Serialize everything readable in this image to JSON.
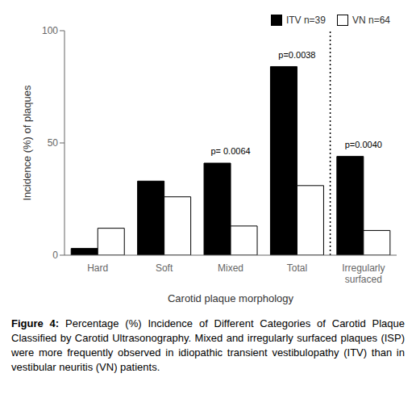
{
  "chart_data": {
    "type": "bar",
    "xlabel": "Carotid plaque morphology",
    "ylabel": "Incidence (%) of plaques",
    "categories": [
      "Hard",
      "Soft",
      "Mixed",
      "Total",
      "Irregularly\nsurfaced"
    ],
    "series": [
      {
        "name": "ITV n=39",
        "color": "#000000",
        "values": [
          3,
          33,
          41,
          84,
          44
        ]
      },
      {
        "name": "VN n=64",
        "color": "#ffffff",
        "values": [
          12,
          26,
          13,
          31,
          11
        ]
      }
    ],
    "ylim": [
      0,
      100
    ],
    "yticks": [
      0,
      50,
      100
    ],
    "legend": "top right",
    "grid": false,
    "annotations": [
      {
        "text": "p= 0.0064",
        "x": "Mixed",
        "y": 43
      },
      {
        "text": "p=0.0038",
        "x": "Total",
        "y": 86
      },
      {
        "text": "p=0.0040",
        "x": "Irregularly\nsurfaced",
        "y": 46
      }
    ],
    "caption_label": "Figure 4:",
    "caption": "Percentage (%) Incidence of Different Categories of Carotid Plaque Classified by Carotid Ultrasonography. Mixed and irregularly surfaced plaques (ISP) were more frequently observed in idiopathic transient vestibulopathy (ITV) than in vestibular neuritis (VN) patients."
  }
}
